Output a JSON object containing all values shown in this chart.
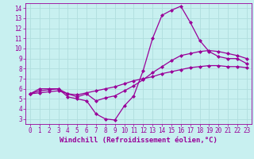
{
  "xlabel": "Windchill (Refroidissement éolien,°C)",
  "bg_color": "#c8f0f0",
  "line_color": "#990099",
  "grid_color": "#b0dede",
  "xlim": [
    -0.5,
    23.5
  ],
  "ylim": [
    2.5,
    14.5
  ],
  "xticks": [
    0,
    1,
    2,
    3,
    4,
    5,
    6,
    7,
    8,
    9,
    10,
    11,
    12,
    13,
    14,
    15,
    16,
    17,
    18,
    19,
    20,
    21,
    22,
    23
  ],
  "yticks": [
    3,
    4,
    5,
    6,
    7,
    8,
    9,
    10,
    11,
    12,
    13,
    14
  ],
  "line1_x": [
    0,
    1,
    2,
    3,
    4,
    5,
    6,
    7,
    8,
    9,
    10,
    11,
    12,
    13,
    14,
    15,
    16,
    17,
    18,
    19,
    20,
    21,
    22,
    23
  ],
  "line1_y": [
    5.5,
    6.0,
    6.0,
    6.0,
    5.2,
    5.0,
    4.8,
    3.5,
    3.0,
    2.9,
    4.3,
    5.3,
    7.8,
    11.0,
    13.3,
    13.8,
    14.2,
    12.6,
    10.8,
    9.7,
    9.2,
    9.0,
    9.0,
    8.5
  ],
  "line2_x": [
    0,
    1,
    2,
    3,
    4,
    5,
    6,
    7,
    8,
    9,
    10,
    11,
    12,
    13,
    14,
    15,
    16,
    17,
    18,
    19,
    20,
    21,
    22,
    23
  ],
  "line2_y": [
    5.5,
    5.8,
    5.9,
    6.0,
    5.5,
    5.2,
    5.5,
    4.8,
    5.1,
    5.3,
    5.8,
    6.3,
    6.9,
    7.6,
    8.2,
    8.8,
    9.3,
    9.5,
    9.7,
    9.8,
    9.7,
    9.5,
    9.3,
    9.0
  ],
  "line3_x": [
    0,
    1,
    2,
    3,
    4,
    5,
    6,
    7,
    8,
    9,
    10,
    11,
    12,
    13,
    14,
    15,
    16,
    17,
    18,
    19,
    20,
    21,
    22,
    23
  ],
  "line3_y": [
    5.5,
    5.6,
    5.7,
    5.8,
    5.5,
    5.4,
    5.6,
    5.8,
    6.0,
    6.2,
    6.5,
    6.8,
    7.0,
    7.2,
    7.5,
    7.7,
    7.9,
    8.1,
    8.2,
    8.3,
    8.3,
    8.2,
    8.2,
    8.1
  ],
  "marker": "D",
  "markersize": 2,
  "linewidth": 0.9,
  "tick_fontsize": 5.5,
  "label_fontsize": 6.5
}
